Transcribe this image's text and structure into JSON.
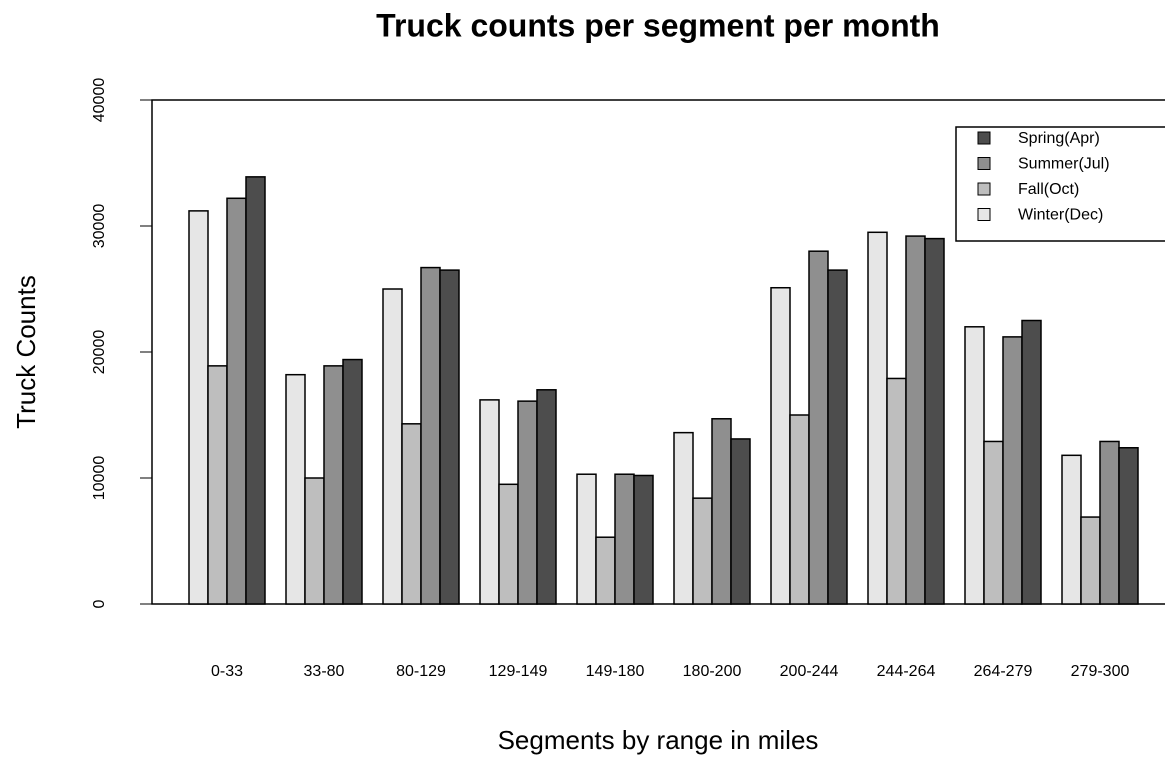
{
  "chart_data": {
    "type": "bar",
    "title": "Truck counts per segment per month",
    "x_label": "Segments by range in miles",
    "y_label": "Truck Counts",
    "categories": [
      "0-33",
      "33-80",
      "80-129",
      "129-149",
      "149-180",
      "180-200",
      "200-244",
      "244-264",
      "264-279",
      "279-300"
    ],
    "series": [
      {
        "name": "Winter(Dec)",
        "color": "#e6e6e6",
        "values": [
          31200,
          18200,
          25000,
          16200,
          10300,
          13600,
          25100,
          29500,
          22000,
          11800
        ]
      },
      {
        "name": "Fall(Oct)",
        "color": "#bebebe",
        "values": [
          18900,
          10000,
          14300,
          9500,
          5300,
          8400,
          15000,
          17900,
          12900,
          6900
        ]
      },
      {
        "name": "Summer(Jul)",
        "color": "#8f8f8f",
        "values": [
          32200,
          18900,
          26700,
          16100,
          10300,
          14700,
          28000,
          29200,
          21200,
          12900
        ]
      },
      {
        "name": "Spring(Apr)",
        "color": "#4d4d4d",
        "values": [
          33900,
          19400,
          26500,
          17000,
          10200,
          13100,
          26500,
          29000,
          22500,
          12400
        ]
      }
    ],
    "ylim": [
      0,
      40000
    ],
    "yticks": [
      0,
      10000,
      20000,
      30000,
      40000
    ],
    "legend": "topright"
  }
}
